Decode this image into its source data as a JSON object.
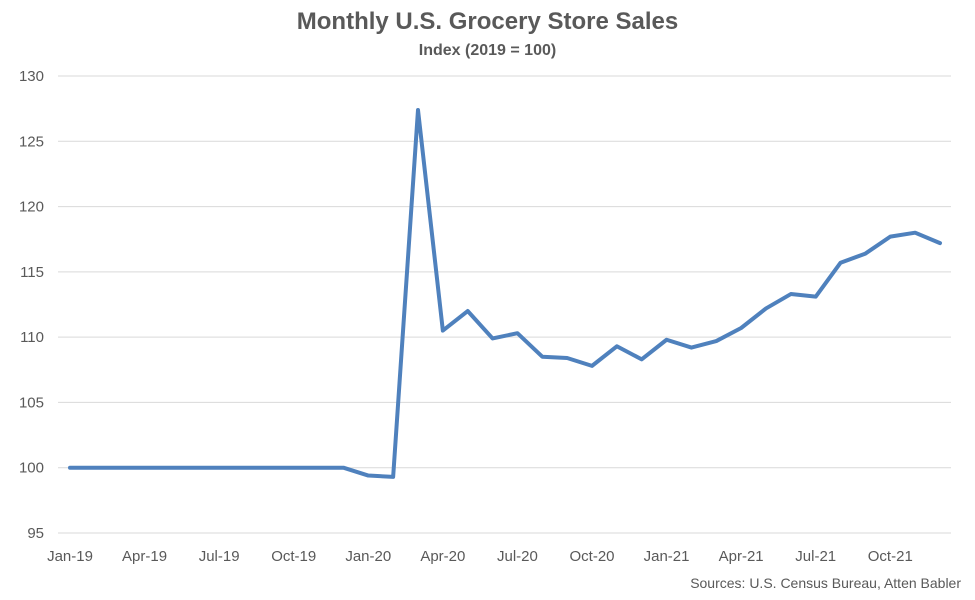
{
  "chart_data": {
    "type": "line",
    "title": "Monthly U.S. Grocery Store Sales",
    "subtitle": "Index (2019 = 100)",
    "source": "Sources: U.S. Census Bureau, Atten Babler",
    "xlabel": "",
    "ylabel": "",
    "ylim": [
      95,
      130
    ],
    "yticks": [
      95,
      100,
      105,
      110,
      115,
      120,
      125,
      130
    ],
    "xtick_labels": [
      "Jan-19",
      "Apr-19",
      "Jul-19",
      "Oct-19",
      "Jan-20",
      "Apr-20",
      "Jul-20",
      "Oct-20",
      "Jan-21",
      "Apr-21",
      "Jul-21",
      "Oct-21"
    ],
    "grid": true,
    "legend": "none",
    "x": [
      "Jan-19",
      "Feb-19",
      "Mar-19",
      "Apr-19",
      "May-19",
      "Jun-19",
      "Jul-19",
      "Aug-19",
      "Sep-19",
      "Oct-19",
      "Nov-19",
      "Dec-19",
      "Jan-20",
      "Feb-20",
      "Mar-20",
      "Apr-20",
      "May-20",
      "Jun-20",
      "Jul-20",
      "Aug-20",
      "Sep-20",
      "Oct-20",
      "Nov-20",
      "Dec-20",
      "Jan-21",
      "Feb-21",
      "Mar-21",
      "Apr-21",
      "May-21",
      "Jun-21",
      "Jul-21",
      "Aug-21",
      "Sep-21",
      "Oct-21",
      "Nov-21",
      "Dec-21"
    ],
    "series": [
      {
        "color": "#4f81bd",
        "values": [
          100,
          100,
          100,
          100,
          100,
          100,
          100,
          100,
          100,
          100,
          100,
          100,
          99.4,
          99.3,
          127.4,
          110.5,
          112.0,
          109.9,
          110.3,
          108.5,
          108.4,
          107.8,
          109.3,
          108.3,
          109.8,
          109.2,
          109.7,
          110.7,
          112.2,
          113.3,
          113.1,
          115.7,
          116.4,
          117.7,
          118.0,
          117.2
        ]
      }
    ]
  }
}
